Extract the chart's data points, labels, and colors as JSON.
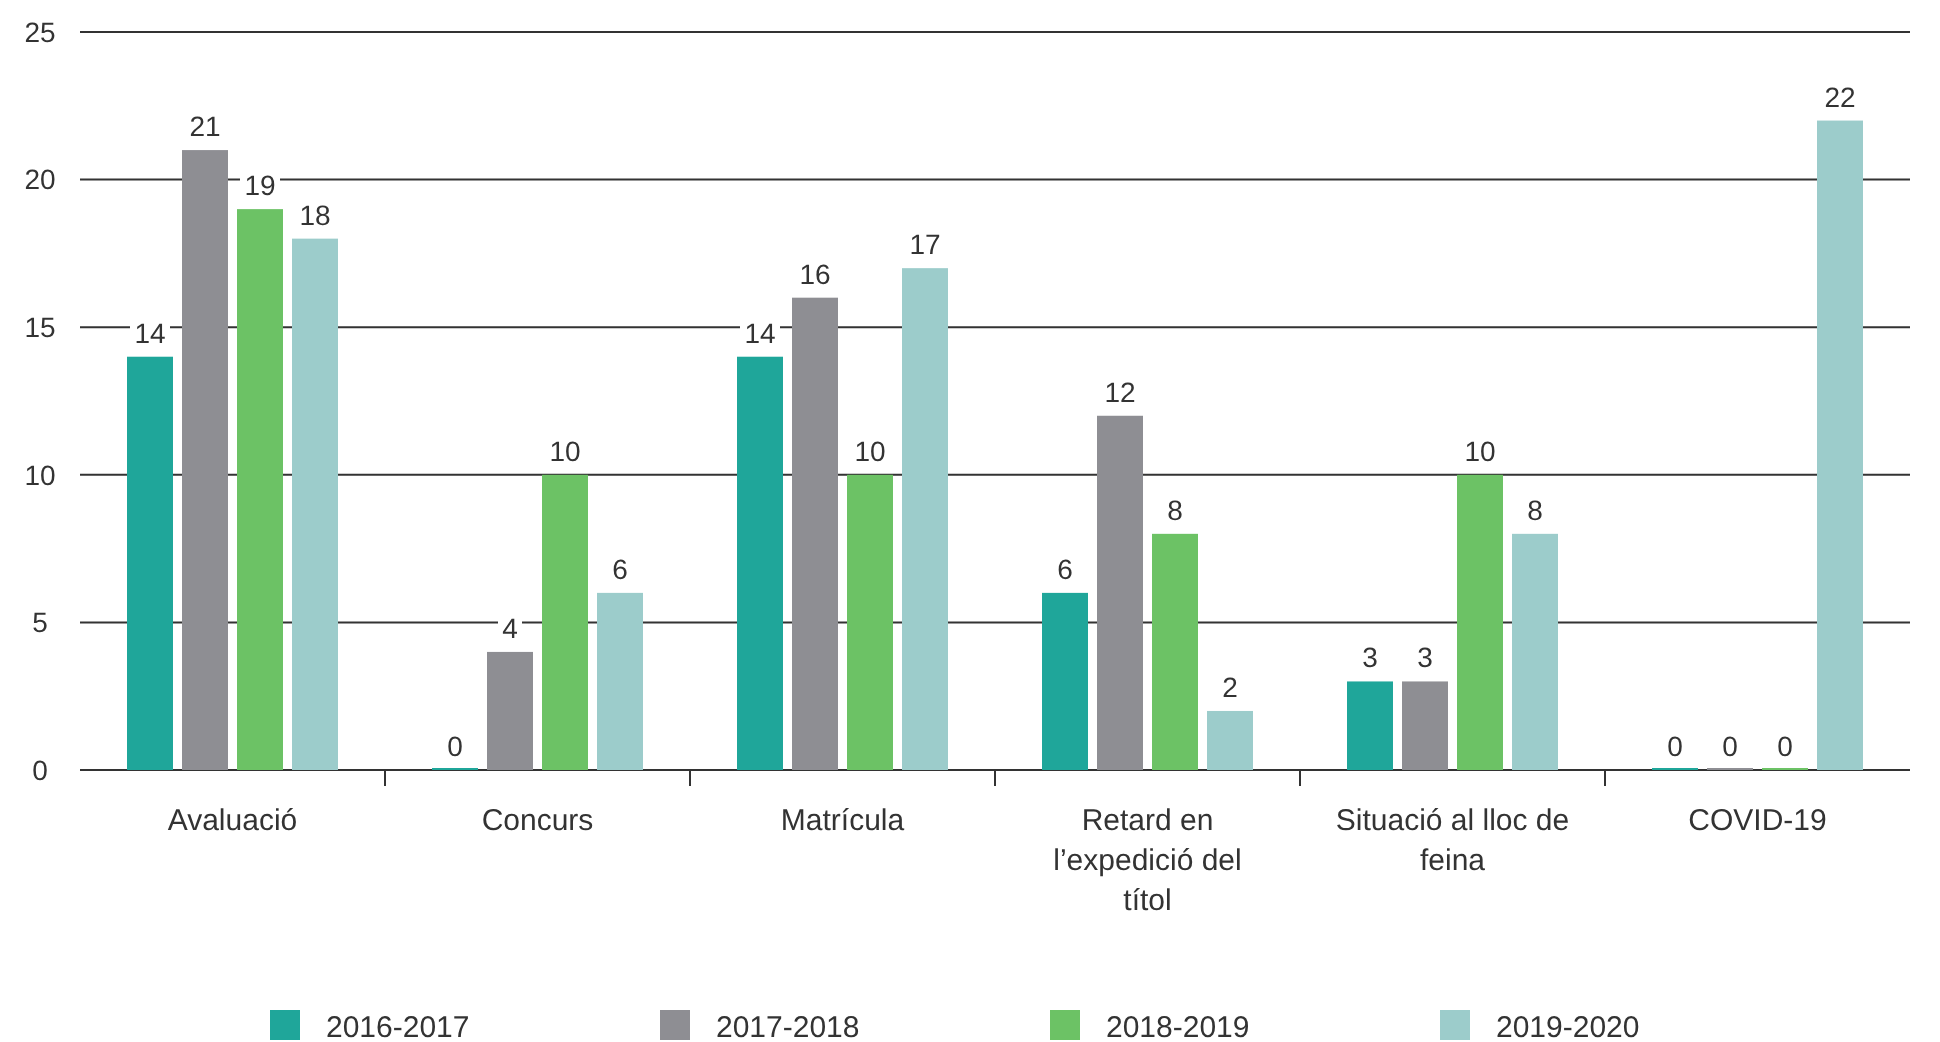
{
  "chart_data": {
    "type": "bar",
    "categories": [
      "Avaluació",
      "Concurs",
      "Matrícula",
      "Retard en l’expedició del títol",
      "Situació al lloc de feina",
      "COVID-19"
    ],
    "series": [
      {
        "name": "2016-2017",
        "color": "#1fa69a",
        "values": [
          14,
          0,
          14,
          6,
          3,
          0
        ]
      },
      {
        "name": "2017-2018",
        "color": "#8e8e93",
        "values": [
          21,
          4,
          16,
          12,
          3,
          0
        ]
      },
      {
        "name": "2018-2019",
        "color": "#6cc265",
        "values": [
          19,
          10,
          10,
          8,
          10,
          0
        ]
      },
      {
        "name": "2019-2020",
        "color": "#9ccccb",
        "values": [
          18,
          6,
          17,
          2,
          8,
          22
        ]
      }
    ],
    "ylim": [
      0,
      25
    ],
    "yticks": [
      0,
      5,
      10,
      15,
      20,
      25
    ],
    "grid": "y",
    "legend": "bottom",
    "data_labels": true
  }
}
